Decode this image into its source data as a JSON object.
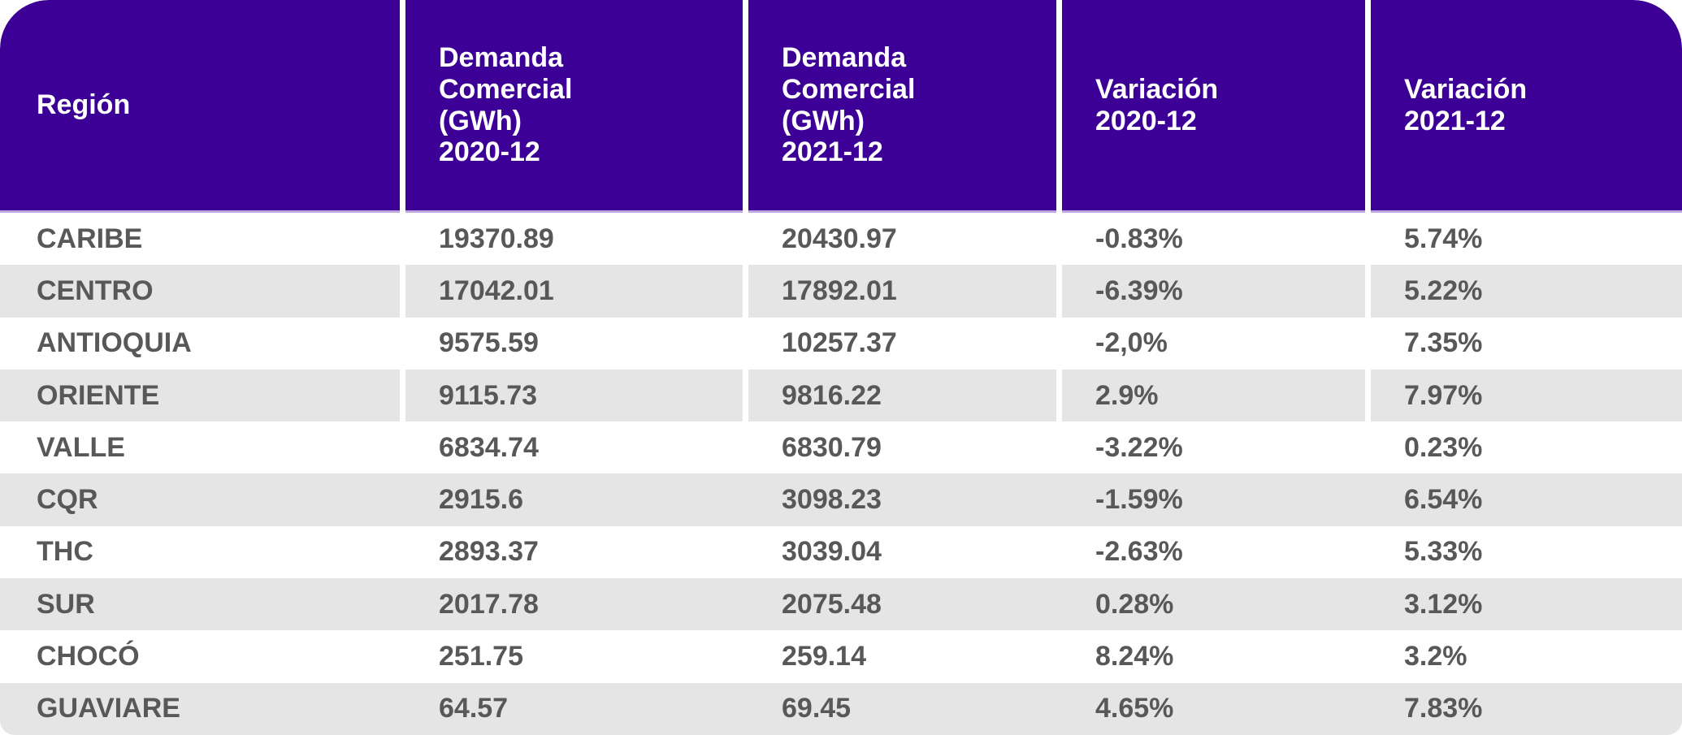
{
  "table": {
    "columns": [
      {
        "label": "Región"
      },
      {
        "label": "Demanda\nComercial\n(GWh)\n2020-12"
      },
      {
        "label": "Demanda\nComercial\n(GWh)\n2021-12"
      },
      {
        "label": "Variación\n2020-12"
      },
      {
        "label": "Variación\n2021-12"
      }
    ],
    "rows": [
      {
        "region": "CARIBE",
        "demanda_2020": "19370.89",
        "demanda_2021": "20430.97",
        "variacion_2020": "-0.83%",
        "variacion_2021": "5.74%"
      },
      {
        "region": "CENTRO",
        "demanda_2020": "17042.01",
        "demanda_2021": "17892.01",
        "variacion_2020": "-6.39%",
        "variacion_2021": "5.22%"
      },
      {
        "region": "ANTIOQUIA",
        "demanda_2020": "9575.59",
        "demanda_2021": "10257.37",
        "variacion_2020": "-2,0%",
        "variacion_2021": "7.35%"
      },
      {
        "region": "ORIENTE",
        "demanda_2020": "9115.73",
        "demanda_2021": "9816.22",
        "variacion_2020": "2.9%",
        "variacion_2021": "7.97%"
      },
      {
        "region": "VALLE",
        "demanda_2020": "6834.74",
        "demanda_2021": "6830.79",
        "variacion_2020": "-3.22%",
        "variacion_2021": "0.23%"
      },
      {
        "region": "CQR",
        "demanda_2020": "2915.6",
        "demanda_2021": "3098.23",
        "variacion_2020": "-1.59%",
        "variacion_2021": "6.54%"
      },
      {
        "region": "THC",
        "demanda_2020": "2893.37",
        "demanda_2021": "3039.04",
        "variacion_2020": "-2.63%",
        "variacion_2021": "5.33%"
      },
      {
        "region": "SUR",
        "demanda_2020": "2017.78",
        "demanda_2021": "2075.48",
        "variacion_2020": "0.28%",
        "variacion_2021": "3.12%"
      },
      {
        "region": "CHOCÓ",
        "demanda_2020": "251.75",
        "demanda_2021": "259.14",
        "variacion_2020": "8.24%",
        "variacion_2021": "3.2%"
      },
      {
        "region": "GUAVIARE",
        "demanda_2020": "64.57",
        "demanda_2021": "69.45",
        "variacion_2020": "4.65%",
        "variacion_2021": "7.83%"
      }
    ]
  },
  "colors": {
    "header_bg": "#3D0097",
    "header_text": "#FFFFFF",
    "row_bg": "#FFFFFF",
    "row_alt_bg": "#E6E5E6",
    "body_text": "#58585A",
    "header_underline": "#BCA8DF",
    "column_gap": "#FFFFFF"
  },
  "chart_data": {
    "type": "table",
    "title": "",
    "columns": [
      "Región",
      "Demanda Comercial (GWh) 2020-12",
      "Demanda Comercial (GWh) 2021-12",
      "Variación 2020-12",
      "Variación 2021-12"
    ],
    "rows": [
      [
        "CARIBE",
        19370.89,
        20430.97,
        "-0.83%",
        "5.74%"
      ],
      [
        "CENTRO",
        17042.01,
        17892.01,
        "-6.39%",
        "5.22%"
      ],
      [
        "ANTIOQUIA",
        9575.59,
        10257.37,
        "-2,0%",
        "7.35%"
      ],
      [
        "ORIENTE",
        9115.73,
        9816.22,
        "2.9%",
        "7.97%"
      ],
      [
        "VALLE",
        6834.74,
        6830.79,
        "-3.22%",
        "0.23%"
      ],
      [
        "CQR",
        2915.6,
        3098.23,
        "-1.59%",
        "6.54%"
      ],
      [
        "THC",
        2893.37,
        3039.04,
        "-2.63%",
        "5.33%"
      ],
      [
        "SUR",
        2017.78,
        2075.48,
        "0.28%",
        "3.12%"
      ],
      [
        "CHOCÓ",
        251.75,
        259.14,
        "8.24%",
        "3.2%"
      ],
      [
        "GUAVIARE",
        64.57,
        69.45,
        "4.65%",
        "7.83%"
      ]
    ],
    "layout": {
      "header_rounded_top_corners": true,
      "zebra_striping": true,
      "column_separators_visible_rows": "header through row 4 (ORIENTE)"
    }
  }
}
